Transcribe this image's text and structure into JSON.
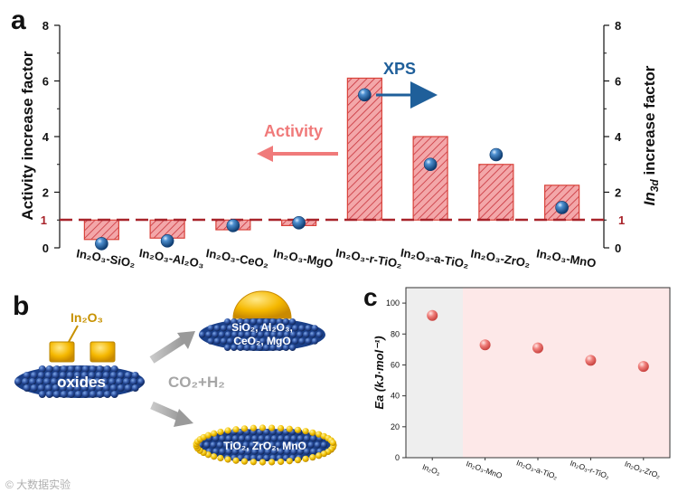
{
  "panel_a": {
    "label": "a",
    "ylabel_left": "Activity increase factor",
    "ylabel_right_italic": "In",
    "ylabel_right_sub": "3d",
    "ylabel_right_rest": " increase factor",
    "xps_label": "XPS",
    "activity_label": "Activity",
    "reference_label": "1"
  },
  "panel_b": {
    "label": "b",
    "in2o3_label": "In₂O₃",
    "oxides_label": "oxides",
    "co2_h2_label": "CO₂+H₂",
    "top_support_line1": "SiO₂, Al₂O₃,",
    "top_support_line2": "CeO₂, MgO",
    "bottom_support_label": "TiO₂,  ZrO₂, MnO"
  },
  "panel_c": {
    "label": "c",
    "ylabel": "Ea (kJ·mol⁻¹)"
  },
  "watermark": "© 大数据实验",
  "colors": {
    "bar_stroke": "#d9423a",
    "bar_hatch": "#c8323a",
    "bar_fill": "#f3a7a9",
    "dash_line": "#a8232a",
    "sphere": "#1f5fa0",
    "xps_text": "#1f5f9a",
    "activity_arrow": "#f07a7a",
    "scatter_point": "#e8706e",
    "panel_c_bg_left": "#eeeeee",
    "panel_c_bg_right": "#fde8e8"
  },
  "chart_data": [
    {
      "type": "bar",
      "categories": [
        "In₂O₃-SiO₂",
        "In₂O₃-Al₂O₃",
        "In₂O₃-CeO₂",
        "In₂O₃-MgO",
        "In₂O₃-r-TiO₂",
        "In₂O₃-a-TiO₂",
        "In₂O₃-ZrO₂",
        "In₂O₃-MnO"
      ],
      "series": [
        {
          "values": [
            0.3,
            0.35,
            0.65,
            0.8,
            6.1,
            4.0,
            3.0,
            2.25
          ]
        },
        {
          "values": [
            0.15,
            0.25,
            0.8,
            0.9,
            5.5,
            3.0,
            3.35,
            1.45
          ]
        }
      ],
      "baseline": 1,
      "reference_line": 1,
      "ylim_left": [
        0,
        8
      ],
      "ylim_right": [
        0,
        8
      ],
      "yticks": [
        0,
        2,
        4,
        6,
        8
      ]
    },
    {
      "type": "scatter",
      "categories": [
        "In₂O₃",
        "In₂O₃-MnO",
        "In₂O₃-a-TiO₂",
        "In₂O₃-r-TiO₂",
        "In₂O₃-ZrO₂"
      ],
      "values": [
        92,
        73,
        71,
        63,
        59
      ],
      "ylim": [
        0,
        110
      ],
      "yticks": [
        0,
        20,
        40,
        60,
        80,
        100
      ]
    }
  ]
}
